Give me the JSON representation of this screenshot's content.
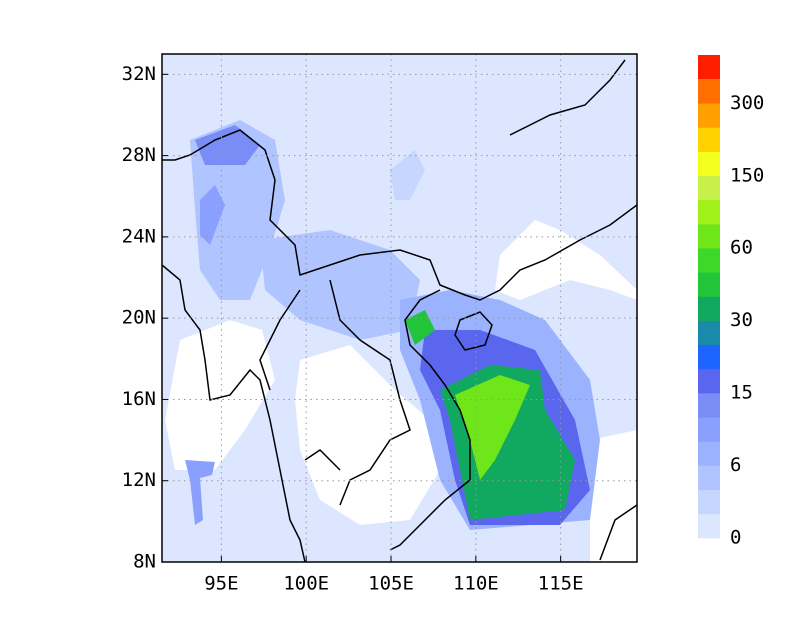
{
  "map": {
    "xlim": [
      91.5,
      119.5
    ],
    "ylim": [
      8,
      33
    ],
    "xticks": [
      {
        "value": 95,
        "label": "95E"
      },
      {
        "value": 100,
        "label": "100E"
      },
      {
        "value": 105,
        "label": "105E"
      },
      {
        "value": 110,
        "label": "110E"
      },
      {
        "value": 115,
        "label": "115E"
      }
    ],
    "yticks": [
      {
        "value": 8,
        "label": "8N"
      },
      {
        "value": 12,
        "label": "12N"
      },
      {
        "value": 16,
        "label": "16N"
      },
      {
        "value": 20,
        "label": "20N"
      },
      {
        "value": 24,
        "label": "24N"
      },
      {
        "value": 28,
        "label": "28N"
      },
      {
        "value": 32,
        "label": "32N"
      }
    ],
    "colorbar": {
      "colors": [
        "#dce6ff",
        "#c6d6ff",
        "#b0c4ff",
        "#9bb3ff",
        "#8aa0ff",
        "#7a8cf5",
        "#5a66ee",
        "#1e64ff",
        "#1a8aaa",
        "#11a860",
        "#22c43a",
        "#3cd82a",
        "#6ee61a",
        "#a0f01a",
        "#c8f04a",
        "#f5ff1e",
        "#ffd200",
        "#ffa000",
        "#ff6e00"
      ],
      "top_color": "#ff1e00",
      "labels": [
        0,
        6,
        15,
        30,
        60,
        150,
        300
      ]
    }
  }
}
